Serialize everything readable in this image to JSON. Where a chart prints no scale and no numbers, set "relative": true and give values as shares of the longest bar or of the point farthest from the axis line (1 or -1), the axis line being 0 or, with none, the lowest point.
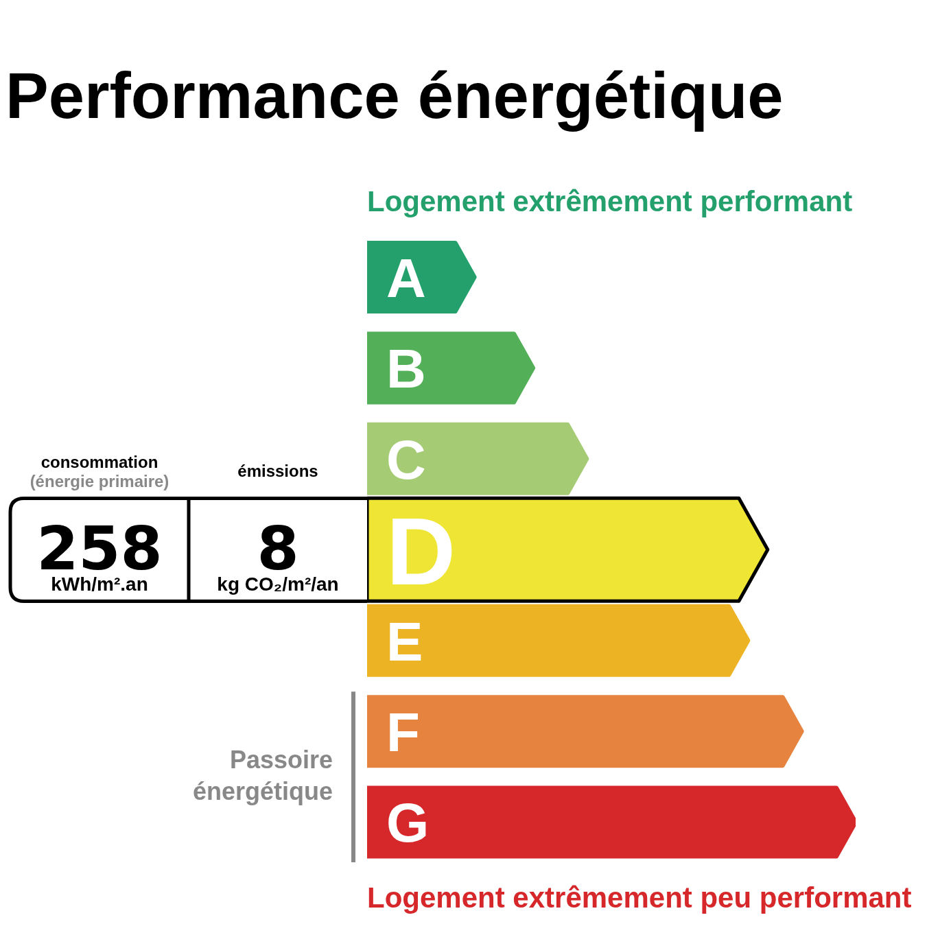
{
  "chart_data": {
    "type": "bar",
    "orientation": "horizontal",
    "relative": true,
    "title": "Performance énergétique",
    "categories": [
      "A",
      "B",
      "C",
      "D",
      "E",
      "F",
      "G"
    ],
    "values": [
      0.22,
      0.34,
      0.45,
      0.82,
      0.78,
      0.89,
      1
    ],
    "colors": [
      "#23a06c",
      "#53b058",
      "#a5cb74",
      "#efe535",
      "#ecb324",
      "#e6843f",
      "#d6282a"
    ],
    "annotations": [
      "Logement extrêmement performant",
      "Logement extrêmement peu performant",
      "consommation",
      "(énergie primaire)",
      "258",
      "kWh/m².an",
      "émissions",
      "8",
      "kg CO₂/m²/an",
      "Passoire énergétique"
    ]
  }
}
